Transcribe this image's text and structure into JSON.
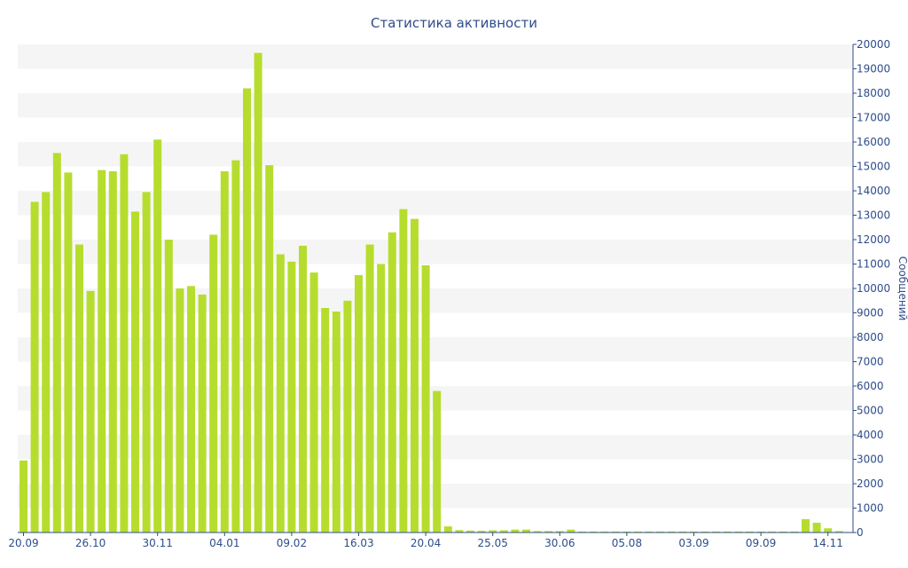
{
  "chart_data": {
    "type": "bar",
    "title": "Статистика активности",
    "xlabel": "",
    "ylabel": "Сообщений",
    "ylim": [
      0,
      20000
    ],
    "y_ticks": [
      0,
      1000,
      2000,
      3000,
      4000,
      5000,
      6000,
      7000,
      8000,
      9000,
      10000,
      11000,
      12000,
      13000,
      14000,
      15000,
      16000,
      17000,
      18000,
      19000,
      20000
    ],
    "y_axis_side": "right",
    "x_tick_labels": [
      {
        "label": "20.09",
        "index": 0
      },
      {
        "label": "26.10",
        "index": 6
      },
      {
        "label": "30.11",
        "index": 12
      },
      {
        "label": "04.01",
        "index": 18
      },
      {
        "label": "09.02",
        "index": 24
      },
      {
        "label": "16.03",
        "index": 30
      },
      {
        "label": "20.04",
        "index": 36
      },
      {
        "label": "25.05",
        "index": 42
      },
      {
        "label": "30.06",
        "index": 48
      },
      {
        "label": "05.08",
        "index": 54
      },
      {
        "label": "03.09",
        "index": 60
      },
      {
        "label": "09.09",
        "index": 66
      },
      {
        "label": "14.11",
        "index": 72
      }
    ],
    "values": [
      2950,
      13550,
      13950,
      15550,
      14750,
      11800,
      9900,
      14850,
      14800,
      15500,
      13150,
      13950,
      16100,
      12000,
      10000,
      10100,
      9750,
      12200,
      14800,
      15250,
      18200,
      19650,
      15050,
      11400,
      11100,
      11750,
      10650,
      9200,
      9050,
      9500,
      10550,
      11800,
      11000,
      12300,
      13250,
      12850,
      10950,
      5800,
      250,
      100,
      80,
      70,
      90,
      90,
      120,
      120,
      60,
      60,
      60,
      120,
      40,
      40,
      40,
      40,
      40,
      40,
      40,
      40,
      40,
      40,
      40,
      40,
      40,
      40,
      40,
      40,
      40,
      40,
      40,
      40,
      550,
      400,
      170,
      60
    ],
    "grid": true,
    "legend": "none",
    "colors": {
      "bar": "#b6dd2e",
      "title": "#2e4d8a",
      "axis_text": "#2e4d8a",
      "grid_band": "#f5f5f5",
      "axis_line": "#2e4d8a"
    }
  }
}
